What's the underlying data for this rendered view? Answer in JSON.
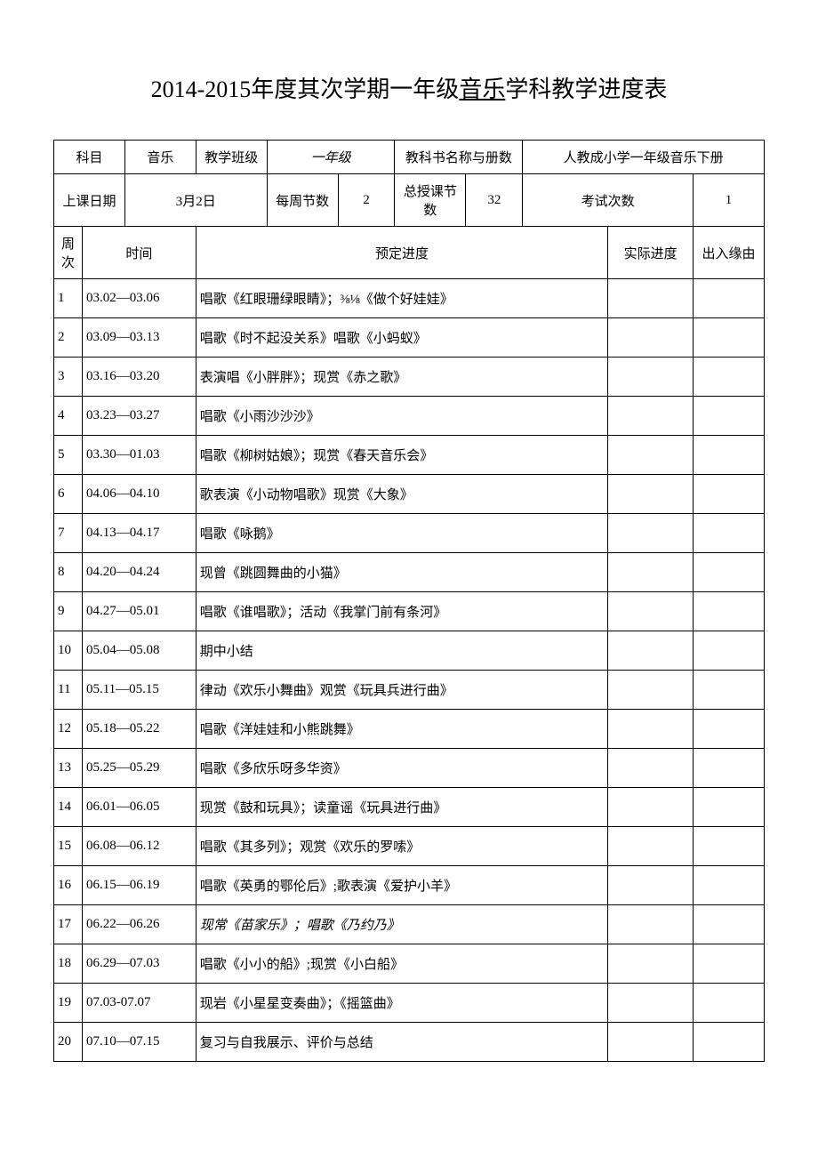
{
  "title_prefix": "2014-2015年度其次学期一年级",
  "title_underline": "音乐",
  "title_suffix": "学科教学进度表",
  "header1": {
    "subject_label": "科目",
    "subject_value": "音乐",
    "class_label": "教学班级",
    "class_value": "一年级",
    "book_label": "教科书名称与册数",
    "book_value": "人教成小学一年级音乐下册"
  },
  "header2": {
    "date_label": "上课日期",
    "date_value": "3月2日",
    "weekly_label": "每周节数",
    "weekly_value": "2",
    "total_label": "总授课节数",
    "total_value": "32",
    "exam_label": "考试次数",
    "exam_value": "1"
  },
  "columns": {
    "week": "周次",
    "time": "时间",
    "plan": "预定进度",
    "actual": "实际进度",
    "reason": "出入缘由"
  },
  "rows": [
    {
      "week": "1",
      "time": "03.02—03.06",
      "plan": "唱歌《红眼珊绿眼睛》；⅜⅛《做个好娃娃》",
      "italic": false
    },
    {
      "week": "2",
      "time": "03.09—03.13",
      "plan": "唱歌《时不起没关系》唱歌《小蚂蚁》",
      "italic": false
    },
    {
      "week": "3",
      "time": "03.16—03.20",
      "plan": "表演唱《小胖胖》；现赏《赤之歌》",
      "italic": false
    },
    {
      "week": "4",
      "time": "03.23—03.27",
      "plan": "唱歌《小雨沙沙沙》",
      "italic": false
    },
    {
      "week": "5",
      "time": "03.30—01.03",
      "plan": "唱歌《柳树姑娘》；现赏《春天音乐会》",
      "italic": false
    },
    {
      "week": "6",
      "time": "04.06—04.10",
      "plan": "歌表演《小动物唱歌》现赏《大象》",
      "italic": false
    },
    {
      "week": "7",
      "time": "04.13—04.17",
      "plan": "唱歌《咏鹅》",
      "italic": false
    },
    {
      "week": "8",
      "time": "04.20—04.24",
      "plan": "现曾《跳圆舞曲的小猫》",
      "italic": false
    },
    {
      "week": "9",
      "time": "04.27—05.01",
      "plan": "唱歌《谁唱歌》；活动《我掌门前有条河》",
      "italic": false
    },
    {
      "week": "10",
      "time": "05.04—05.08",
      "plan": "期中小结",
      "italic": false
    },
    {
      "week": "11",
      "time": "05.11—05.15",
      "plan": "律动《欢乐小舞曲》观赏《玩具兵进行曲》",
      "italic": false
    },
    {
      "week": "12",
      "time": "05.18—05.22",
      "plan": "唱歌《洋娃娃和小熊跳舞》",
      "italic": false
    },
    {
      "week": "13",
      "time": "05.25—05.29",
      "plan": "唱歌《多欣乐呀多华资》",
      "italic": false
    },
    {
      "week": "14",
      "time": "06.01—06.05",
      "plan": "现赏《鼓和玩具》；读童谣《玩具进行曲》",
      "italic": false
    },
    {
      "week": "15",
      "time": "06.08—06.12",
      "plan": "唱歌《其多列》；观赏《欢乐的罗嗦》",
      "italic": false
    },
    {
      "week": "16",
      "time": "06.15—06.19",
      "plan": "唱歌《英勇的鄂伦后》;歌表演《爱护小羊》",
      "italic": false
    },
    {
      "week": "17",
      "time": "06.22—06.26",
      "plan": "现常《苗家乐》；唱歌《乃约乃》",
      "italic": true
    },
    {
      "week": "18",
      "time": "06.29—07.03",
      "plan": "唱歌《小小的船》;现赏《小白船》",
      "italic": false
    },
    {
      "week": "19",
      "time": "07.03-07.07",
      "plan": "现岩《小星星变奏曲》；《摇篮曲》",
      "italic": false
    },
    {
      "week": "20",
      "time": "07.10—07.15",
      "plan": "复习与自我展示、评价与总结",
      "italic": false
    }
  ]
}
